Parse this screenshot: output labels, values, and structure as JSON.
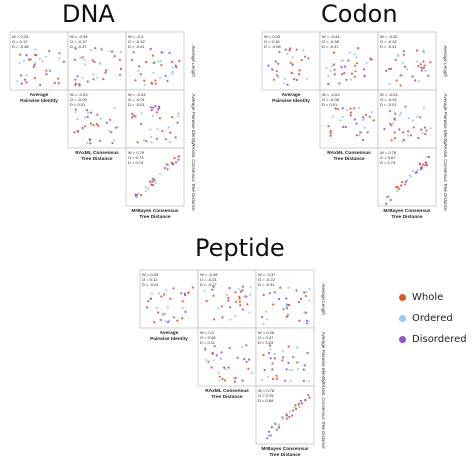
{
  "titles": {
    "dna": "DNA",
    "codon": "Codon",
    "peptide": "Peptide"
  },
  "legend": [
    {
      "label": "Whole",
      "color": "#e8531c"
    },
    {
      "label": "Ordered",
      "color": "#8ecfee"
    },
    {
      "label": "Disordered",
      "color": "#9b4fd6"
    }
  ],
  "chart_data": [
    {
      "type": "scatter",
      "title": "DNA",
      "variables": [
        "Average Pairwise Identity",
        "RAxML Consensus Tree Distance",
        "MrBayes Consensus Tree Distance",
        "Average Length"
      ],
      "cells": [
        {
          "row": 0,
          "col": 0,
          "stats": [
            "W = 0.03",
            "O = 0.17",
            "D = -0.08"
          ]
        },
        {
          "row": 0,
          "col": 1,
          "stats": [
            "W = -0.39",
            "O = -0.37",
            "D = -0.37"
          ]
        },
        {
          "row": 0,
          "col": 2,
          "stats": [
            "W = -0.4",
            "O = -0.42",
            "D = -0.41"
          ]
        },
        {
          "row": 1,
          "col": 1,
          "stats": [
            "W = -0.03",
            "O = -0.09",
            "D = 0.01"
          ]
        },
        {
          "row": 1,
          "col": 2,
          "stats": [
            "W = -0.03",
            "O = -0.01",
            "D = -0.01"
          ]
        },
        {
          "row": 2,
          "col": 2,
          "stats": [
            "W = 0.79",
            "O = 0.73",
            "D = 0.74"
          ]
        }
      ]
    },
    {
      "type": "scatter",
      "title": "Codon",
      "variables": [
        "Average Pairwise Identity",
        "RAxML Consensus Tree Distance",
        "MrBayes Consensus Tree Distance",
        "Average Length"
      ],
      "cells": [
        {
          "row": 0,
          "col": 0,
          "stats": [
            "W = 0.03",
            "O = 0.18",
            "D = -0.08"
          ]
        },
        {
          "row": 0,
          "col": 1,
          "stats": [
            "W = -0.44",
            "O = -0.38",
            "D = -0.37"
          ]
        },
        {
          "row": 0,
          "col": 2,
          "stats": [
            "W = -0.42",
            "O = -0.42",
            "D = -0.41"
          ]
        },
        {
          "row": 1,
          "col": 1,
          "stats": [
            "W = -0.03",
            "O = -0.08",
            "D = 0.01"
          ]
        },
        {
          "row": 1,
          "col": 2,
          "stats": [
            "W = -0.03",
            "O = -0.01",
            "D = -0.01"
          ]
        },
        {
          "row": 2,
          "col": 2,
          "stats": [
            "W = 0.78",
            "O = 0.67",
            "D = 0.74"
          ]
        }
      ]
    },
    {
      "type": "scatter",
      "title": "Peptide",
      "variables": [
        "Average Pairwise Identity",
        "RAxML Consensus Tree Distance",
        "MrBayes Consensus Tree Distance",
        "Average Length"
      ],
      "cells": [
        {
          "row": 0,
          "col": 0,
          "stats": [
            "W = 0.03",
            "O = 0.12",
            "D = -0.01"
          ]
        },
        {
          "row": 0,
          "col": 1,
          "stats": [
            "W = -0.28",
            "O = -0.21",
            "D = -0.27"
          ]
        },
        {
          "row": 0,
          "col": 2,
          "stats": [
            "W = -0.37",
            "O = -0.22",
            "D = -0.31"
          ]
        },
        {
          "row": 1,
          "col": 1,
          "stats": [
            "W = 0.2",
            "O = 0.48",
            "D = 0.11"
          ]
        },
        {
          "row": 1,
          "col": 2,
          "stats": [
            "W = 0.26",
            "O = 0.47",
            "D = 0.23"
          ]
        },
        {
          "row": 2,
          "col": 2,
          "stats": [
            "W = 0.78",
            "O = 0.76",
            "D = 0.84"
          ]
        }
      ]
    }
  ]
}
